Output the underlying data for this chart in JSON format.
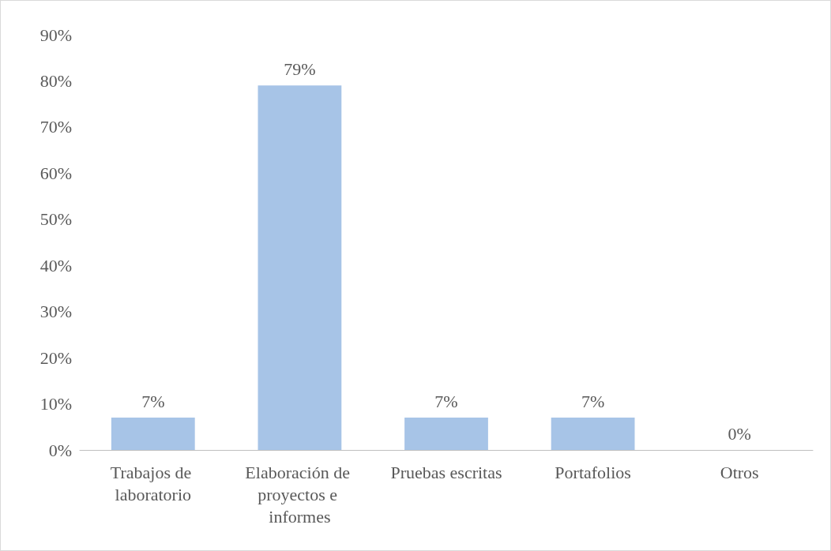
{
  "chart_data": {
    "type": "bar",
    "categories": [
      "Trabajos de laboratorio",
      "Elaboración de proyectos e informes",
      "Pruebas escritas",
      "Portafolios",
      "Otros"
    ],
    "values": [
      7,
      79,
      7,
      7,
      0
    ],
    "value_labels": [
      "7%",
      "79%",
      "7%",
      "7%",
      "0%"
    ],
    "color": "#a7c4e7",
    "ylim": [
      0,
      90
    ],
    "yticks": [
      {
        "value": 0,
        "label": "0%"
      },
      {
        "value": 10,
        "label": "10%"
      },
      {
        "value": 20,
        "label": "20%"
      },
      {
        "value": 30,
        "label": "30%"
      },
      {
        "value": 40,
        "label": "40%"
      },
      {
        "value": 50,
        "label": "50%"
      },
      {
        "value": 60,
        "label": "60%"
      },
      {
        "value": 70,
        "label": "70%"
      },
      {
        "value": 80,
        "label": "80%"
      },
      {
        "value": 90,
        "label": "90%"
      }
    ],
    "grid": false
  }
}
